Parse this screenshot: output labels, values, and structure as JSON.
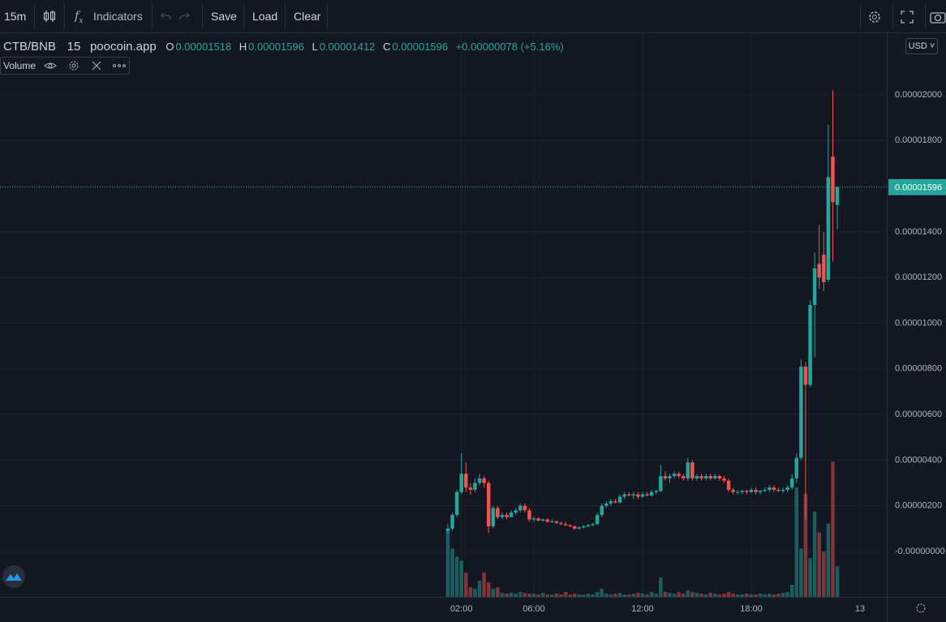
{
  "toolbar": {
    "interval": "15m",
    "indicators": "Indicators",
    "save": "Save",
    "load": "Load",
    "clear": "Clear"
  },
  "chart_data": {
    "type": "candlestick",
    "title": "CTB/BNB",
    "interval": "15",
    "source": "poocoin.app",
    "ohlc_labels": [
      "O",
      "H",
      "L",
      "C"
    ],
    "change_label": "+0.00000078 (+5.16%)",
    "indicator": "Volume",
    "currency": "USD",
    "up_color": "#26a69a",
    "down_color": "#ef5350",
    "grid": true,
    "ylim": [
      -1.99e-06,
      2.27e-05
    ],
    "yticks": [
      {
        "value": 0,
        "label": "-0.00000000"
      },
      {
        "value": 2e-06,
        "label": "0.00000200"
      },
      {
        "value": 4e-06,
        "label": "0.00000400"
      },
      {
        "value": 6e-06,
        "label": "0.00000600"
      },
      {
        "value": 8e-06,
        "label": "0.00000800"
      },
      {
        "value": 1e-05,
        "label": "0.00001000"
      },
      {
        "value": 1.2e-05,
        "label": "0.00001200"
      },
      {
        "value": 1.4e-05,
        "label": "0.00001400"
      },
      {
        "value": 1.6e-05,
        "label": "0.00001600"
      },
      {
        "value": 1.8e-05,
        "label": "0.00001800"
      },
      {
        "value": 2e-05,
        "label": "0.00002000"
      }
    ],
    "xlim": [
      -23.47,
      25.48
    ],
    "xticks": [
      {
        "value": 2,
        "label": "02:00"
      },
      {
        "value": 6,
        "label": "06:00"
      },
      {
        "value": 12,
        "label": "12:00"
      },
      {
        "value": 18,
        "label": "18:00"
      },
      {
        "value": 24,
        "label": "13"
      }
    ],
    "volume_ylim": [
      0,
      700
    ],
    "candles": {
      "x": [
        1.25,
        1.5,
        1.75,
        2,
        2.25,
        2.5,
        2.75,
        3,
        3.25,
        3.5,
        3.75,
        4,
        4.25,
        4.5,
        4.75,
        5,
        5.25,
        5.5,
        5.75,
        6,
        6.25,
        6.5,
        6.75,
        7,
        7.25,
        7.5,
        7.75,
        8,
        8.25,
        8.5,
        8.75,
        9,
        9.25,
        9.5,
        9.75,
        10,
        10.25,
        10.5,
        10.75,
        11,
        11.25,
        11.5,
        11.75,
        12,
        12.25,
        12.5,
        12.75,
        13,
        13.25,
        13.5,
        13.75,
        14,
        14.25,
        14.5,
        14.75,
        15,
        15.25,
        15.5,
        15.75,
        16,
        16.25,
        16.5,
        16.75,
        17,
        17.25,
        17.5,
        17.75,
        18,
        18.25,
        18.5,
        18.75,
        19,
        19.25,
        19.5,
        19.75,
        20,
        20.25,
        20.5,
        20.75,
        21,
        21.25,
        21.5,
        21.75,
        22,
        22.25,
        22.5,
        22.75
      ],
      "open": [
        9e-07,
        1e-06,
        1.6e-06,
        2.6e-06,
        3.4e-06,
        2.8e-06,
        2.7e-06,
        3e-06,
        3.2e-06,
        3e-06,
        1.1e-06,
        1.9e-06,
        1.5e-06,
        1.6e-06,
        1.5e-06,
        1.7e-06,
        1.8e-06,
        2e-06,
        1.8e-06,
        1.4e-06,
        1.45e-06,
        1.35e-06,
        1.4e-06,
        1.3e-06,
        1.32e-06,
        1.25e-06,
        1.2e-06,
        1.15e-06,
        1.1e-06,
        1e-06,
        1.05e-06,
        1.1e-06,
        1.15e-06,
        1.2e-06,
        1.6e-06,
        2e-06,
        2.1e-06,
        2.2e-06,
        2.15e-06,
        2.4e-06,
        2.5e-06,
        2.45e-06,
        2.5e-06,
        2.4e-06,
        2.5e-06,
        2.45e-06,
        2.6e-06,
        2.65e-06,
        3.3e-06,
        3.2e-06,
        3.3e-06,
        3.4e-06,
        3.3e-06,
        3.2e-06,
        3.9e-06,
        3.2e-06,
        3.3e-06,
        3.2e-06,
        3.3e-06,
        3.2e-06,
        3.3e-06,
        3.2e-06,
        3.1e-06,
        2.7e-06,
        2.6e-06,
        2.6e-06,
        2.65e-06,
        2.6e-06,
        2.7e-06,
        2.6e-06,
        2.65e-06,
        2.7e-06,
        2.8e-06,
        2.7e-06,
        2.65e-06,
        2.7e-06,
        2.8e-06,
        3.2e-06,
        4.1e-06,
        8.1e-06,
        7.3e-06,
        1.08e-05,
        1.26e-05,
        1.3e-05,
        1.19e-05,
        1.73e-05,
        1.518e-05
      ],
      "high": [
        1.2e-06,
        1.7e-06,
        2.7e-06,
        4.3e-06,
        3.9e-06,
        3e-06,
        3.2e-06,
        3.4e-06,
        3.3e-06,
        3.1e-06,
        2e-06,
        2e-06,
        1.7e-06,
        1.7e-06,
        1.8e-06,
        1.9e-06,
        2.1e-06,
        2.1e-06,
        1.9e-06,
        1.5e-06,
        1.5e-06,
        1.45e-06,
        1.45e-06,
        1.4e-06,
        1.35e-06,
        1.3e-06,
        1.3e-06,
        1.2e-06,
        1.15e-06,
        1.1e-06,
        1.15e-06,
        1.2e-06,
        1.25e-06,
        1.7e-06,
        2.1e-06,
        2.2e-06,
        2.3e-06,
        2.3e-06,
        2.5e-06,
        2.6e-06,
        2.6e-06,
        2.6e-06,
        2.6e-06,
        2.6e-06,
        2.6e-06,
        2.7e-06,
        2.7e-06,
        3.8e-06,
        3.5e-06,
        3.4e-06,
        3.5e-06,
        3.5e-06,
        3.4e-06,
        4.1e-06,
        4e-06,
        3.4e-06,
        3.4e-06,
        3.4e-06,
        3.4e-06,
        3.4e-06,
        3.35e-06,
        3.3e-06,
        3.2e-06,
        2.8e-06,
        2.7e-06,
        2.7e-06,
        2.7e-06,
        2.8e-06,
        2.8e-06,
        2.7e-06,
        2.8e-06,
        2.9e-06,
        2.9e-06,
        2.8e-06,
        2.8e-06,
        2.9e-06,
        3.4e-06,
        4.3e-06,
        8.4e-06,
        8.3e-06,
        1.1e-05,
        1.31e-05,
        1.43e-05,
        1.4e-05,
        1.87e-05,
        2.02e-05,
        1.596e-05
      ],
      "low": [
        8e-07,
        9e-07,
        1.5e-06,
        2.5e-06,
        2.6e-06,
        2.5e-06,
        2.6e-06,
        2.9e-06,
        2.8e-06,
        8e-07,
        1e-06,
        1.4e-06,
        1.4e-06,
        1.4e-06,
        1.5e-06,
        1.6e-06,
        1.7e-06,
        1.7e-06,
        1.3e-06,
        1.3e-06,
        1.3e-06,
        1.3e-06,
        1.25e-06,
        1.25e-06,
        1.2e-06,
        1.15e-06,
        1.1e-06,
        1.05e-06,
        9.5e-07,
        9.5e-07,
        1e-06,
        1.05e-06,
        1.1e-06,
        1.15e-06,
        1.5e-06,
        1.9e-06,
        2e-06,
        2.1e-06,
        2.1e-06,
        2.3e-06,
        2.4e-06,
        2.3e-06,
        2.3e-06,
        2.35e-06,
        2.4e-06,
        2.4e-06,
        2.5e-06,
        2.6e-06,
        3.1e-06,
        3e-06,
        3.2e-06,
        3.2e-06,
        3.1e-06,
        3.1e-06,
        3.1e-06,
        3.1e-06,
        3.1e-06,
        3.1e-06,
        3.1e-06,
        3.15e-06,
        3.1e-06,
        3e-06,
        2.6e-06,
        2.5e-06,
        2.5e-06,
        2.5e-06,
        2.5e-06,
        2.55e-06,
        2.5e-06,
        2.5e-06,
        2.6e-06,
        2.6e-06,
        2.6e-06,
        2.6e-06,
        2.55e-06,
        2.6e-06,
        2.7e-06,
        3e-06,
        4e-06,
        1.4e-06,
        7.2e-06,
        8.5e-06,
        1.15e-05,
        1.14e-05,
        1.18e-05,
        1.27e-05,
        1.412e-05
      ],
      "close": [
        1e-06,
        1.6e-06,
        2.6e-06,
        3.4e-06,
        2.8e-06,
        2.7e-06,
        3e-06,
        3.2e-06,
        3e-06,
        1.1e-06,
        1.9e-06,
        1.5e-06,
        1.6e-06,
        1.5e-06,
        1.7e-06,
        1.8e-06,
        2e-06,
        1.8e-06,
        1.4e-06,
        1.45e-06,
        1.35e-06,
        1.4e-06,
        1.3e-06,
        1.32e-06,
        1.25e-06,
        1.2e-06,
        1.15e-06,
        1.1e-06,
        1e-06,
        1.05e-06,
        1.1e-06,
        1.15e-06,
        1.2e-06,
        1.6e-06,
        2e-06,
        2.1e-06,
        2.2e-06,
        2.15e-06,
        2.4e-06,
        2.5e-06,
        2.45e-06,
        2.5e-06,
        2.4e-06,
        2.5e-06,
        2.45e-06,
        2.6e-06,
        2.65e-06,
        3.3e-06,
        3.2e-06,
        3.3e-06,
        3.4e-06,
        3.3e-06,
        3.2e-06,
        3.9e-06,
        3.2e-06,
        3.3e-06,
        3.2e-06,
        3.3e-06,
        3.2e-06,
        3.3e-06,
        3.2e-06,
        3.1e-06,
        2.7e-06,
        2.6e-06,
        2.6e-06,
        2.65e-06,
        2.6e-06,
        2.7e-06,
        2.6e-06,
        2.65e-06,
        2.7e-06,
        2.8e-06,
        2.7e-06,
        2.65e-06,
        2.7e-06,
        2.8e-06,
        3.2e-06,
        4.1e-06,
        8.1e-06,
        7.3e-06,
        1.08e-05,
        1.24e-05,
        1.2e-05,
        1.18e-05,
        1.64e-05,
        1.53e-05,
        1.596e-05
      ],
      "volume": [
        85,
        60,
        50,
        45,
        30,
        12,
        10,
        20,
        30,
        18,
        10,
        12,
        5,
        4,
        5,
        4,
        6,
        5,
        4,
        4,
        3,
        5,
        3,
        3,
        4,
        3,
        6,
        3,
        4,
        3,
        3,
        4,
        3,
        6,
        10,
        4,
        3,
        4,
        5,
        3,
        3,
        4,
        5,
        4,
        3,
        6,
        4,
        24,
        6,
        5,
        4,
        6,
        4,
        8,
        6,
        5,
        4,
        3,
        5,
        4,
        3,
        4,
        6,
        4,
        3,
        3,
        4,
        3,
        3,
        4,
        3,
        4,
        3,
        4,
        5,
        6,
        15,
        136,
        60,
        128,
        48,
        106,
        80,
        56,
        91,
        168,
        38
      ]
    }
  }
}
